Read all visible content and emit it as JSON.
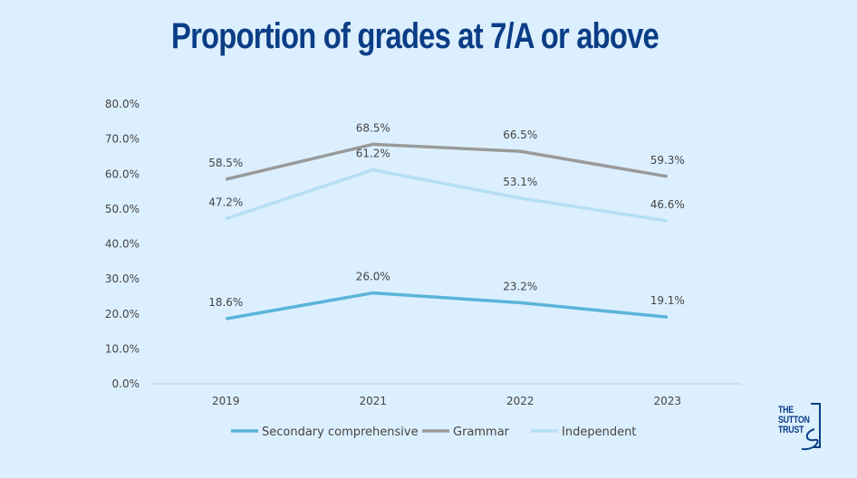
{
  "chart_data": {
    "type": "line",
    "title": "Proportion of grades at 7/A or above",
    "categories": [
      "2019",
      "2021",
      "2022",
      "2023"
    ],
    "ylim": [
      0,
      80
    ],
    "yticks": [
      "0.0%",
      "10.0%",
      "20.0%",
      "30.0%",
      "40.0%",
      "50.0%",
      "60.0%",
      "70.0%",
      "80.0%"
    ],
    "grid": false,
    "legend_position": "bottom",
    "series": [
      {
        "name": "Secondary comprehensive",
        "color": "#5ab4d9",
        "values": [
          18.6,
          26.0,
          23.2,
          19.1
        ],
        "labels": [
          "18.6%",
          "26.0%",
          "23.2%",
          "19.1%"
        ]
      },
      {
        "name": "Grammar",
        "color": "#9a9a9a",
        "values": [
          58.5,
          68.5,
          66.5,
          59.3
        ],
        "labels": [
          "58.5%",
          "68.5%",
          "66.5%",
          "59.3%"
        ]
      },
      {
        "name": "Independent",
        "color": "#b5dff4",
        "values": [
          47.2,
          61.2,
          53.1,
          46.6
        ],
        "labels": [
          "47.2%",
          "61.2%",
          "53.1%",
          "46.6%"
        ]
      }
    ]
  },
  "logo": {
    "text": [
      "THE",
      "SUTTON",
      "TRUST"
    ]
  }
}
